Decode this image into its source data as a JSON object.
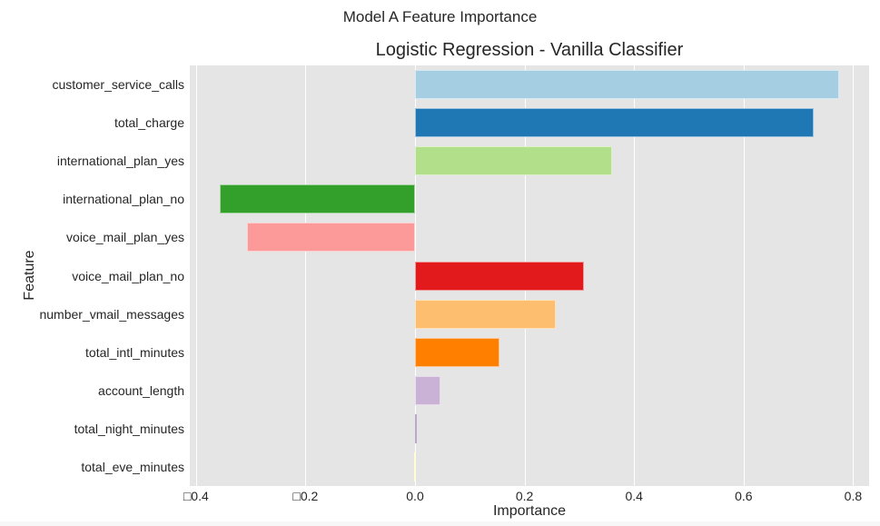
{
  "figure": {
    "suptitle": "Model A Feature Importance",
    "title": "Logistic Regression - Vanilla Classifier",
    "xlabel": "Importance",
    "ylabel": "Feature"
  },
  "chart_data": {
    "type": "bar",
    "orientation": "horizontal",
    "suptitle": "Model A Feature Importance",
    "title": "Logistic Regression - Vanilla Classifier",
    "xlabel": "Importance",
    "ylabel": "Feature",
    "categories": [
      "customer_service_calls",
      "total_charge",
      "international_plan_yes",
      "international_plan_no",
      "voice_mail_plan_yes",
      "voice_mail_plan_no",
      "number_vmail_messages",
      "total_intl_minutes",
      "account_length",
      "total_night_minutes",
      "total_eve_minutes"
    ],
    "values": [
      0.774,
      0.728,
      0.36,
      -0.357,
      -0.307,
      0.308,
      0.257,
      0.154,
      0.046,
      0.003,
      -0.002
    ],
    "colors": [
      "#a6cee3",
      "#1f78b4",
      "#b2df8a",
      "#33a02c",
      "#fb9a99",
      "#e31a1c",
      "#fdbf6f",
      "#ff7f00",
      "#cab2d6",
      "#6a3d9a",
      "#ffff99"
    ],
    "xlim": [
      -0.41,
      0.83
    ],
    "xticks": [
      -0.4,
      -0.2,
      0.0,
      0.2,
      0.4,
      0.6,
      0.8
    ],
    "xtick_labels": [
      "□0.4",
      "□0.2",
      "0.0",
      "0.2",
      "0.4",
      "0.6",
      "0.8"
    ],
    "grid": true,
    "legend": null
  }
}
